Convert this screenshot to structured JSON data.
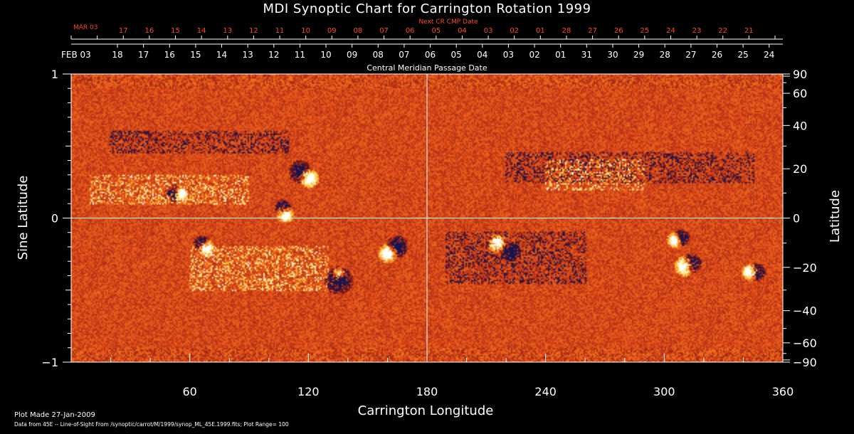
{
  "title": "MDI Synoptic Chart for Carrington Rotation 1999",
  "top_axis": {
    "next_label": "Next CR CMP Date",
    "next_start_label": "MAR 03",
    "next_ticks": [
      "17",
      "16",
      "15",
      "14",
      "13",
      "12",
      "11",
      "10",
      "09",
      "08",
      "07",
      "06",
      "05",
      "04",
      "03",
      "02",
      "01",
      "28",
      "27",
      "26",
      "25",
      "24",
      "23",
      "22",
      "21"
    ],
    "cmp_label": "Central Meridian Passage Date",
    "cmp_start_label": "FEB 03",
    "cmp_ticks": [
      "18",
      "17",
      "16",
      "15",
      "14",
      "13",
      "12",
      "11",
      "10",
      "09",
      "08",
      "07",
      "06",
      "05",
      "04",
      "03",
      "02",
      "01",
      "31",
      "30",
      "29",
      "28",
      "27",
      "26",
      "25",
      "24"
    ]
  },
  "footer": {
    "line1": "Plot Made 27-Jan-2009",
    "line2": "Data from 45E -- Line-of-Sight From /synoptic/carrot/M/1999/synop_ML_45E.1999.fits; Plot Range=  100"
  },
  "colors": {
    "background": "#000000",
    "accent_red": "#ff4a1c",
    "map_base": "#e8541c",
    "positive": "#fffbe0",
    "negative": "#10104a"
  },
  "chart_data": {
    "type": "heatmap",
    "title": "MDI Synoptic Chart for Carrington Rotation 1999",
    "xlabel": "Carrington Longitude",
    "ylabel": "Sine Latitude",
    "y2label": "Latitude",
    "xlim": [
      0,
      360
    ],
    "ylim": [
      -1,
      1
    ],
    "x_ticks": [
      60,
      120,
      180,
      240,
      300,
      360
    ],
    "x_tick_labels": [
      "60",
      "120",
      "180",
      "240",
      "300",
      "360"
    ],
    "y_ticks": [
      -1,
      0,
      1
    ],
    "y_tick_labels": [
      "−1",
      "0",
      "1"
    ],
    "lat_ticks": [
      90,
      60,
      40,
      20,
      0,
      -20,
      -40,
      -60,
      -90
    ],
    "lat_tick_labels": [
      "90",
      "60",
      "40",
      "20",
      "0",
      "−20",
      "−40",
      "−60",
      "−90"
    ],
    "plot_range": 100,
    "grid_lines": {
      "x": [
        180
      ],
      "y": [
        0
      ]
    },
    "active_regions": [
      {
        "lon": 120,
        "sinlat": 0.28,
        "pos": [
          0.5,
          0.45
        ],
        "neg": [
          -4,
          0.08,
          0.35
        ]
      },
      {
        "lon": 108,
        "sinlat": 0.03,
        "pos": [
          0.4,
          0.3
        ],
        "neg": [
          -1,
          0.08,
          0.2
        ]
      },
      {
        "lon": 160,
        "sinlat": -0.24,
        "pos": [
          0.5,
          0.5
        ],
        "neg": [
          4,
          0.08,
          0.35
        ]
      },
      {
        "lon": 135,
        "sinlat": -0.38,
        "pos": [
          0.2,
          0.2
        ],
        "neg": [
          0,
          -0.08,
          0.5
        ]
      },
      {
        "lon": 215,
        "sinlat": -0.17,
        "pos": [
          0.45,
          0.25
        ],
        "neg": [
          6,
          -0.1,
          0.3
        ]
      },
      {
        "lon": 310,
        "sinlat": -0.33,
        "pos": [
          0.55,
          0.45
        ],
        "neg": [
          3,
          0.03,
          0.3
        ]
      },
      {
        "lon": 343,
        "sinlat": -0.37,
        "pos": [
          0.4,
          0.35
        ],
        "neg": [
          3,
          0,
          0.25
        ]
      },
      {
        "lon": 305,
        "sinlat": -0.15,
        "pos": [
          0.35,
          0.28
        ],
        "neg": [
          3,
          0.03,
          0.22
        ]
      },
      {
        "lon": 68,
        "sinlat": -0.2,
        "pos": [
          0.35,
          0.28
        ],
        "neg": [
          -2,
          0.05,
          0.2
        ]
      },
      {
        "lon": 55,
        "sinlat": 0.17,
        "pos": [
          0.3,
          0.3
        ],
        "neg": [
          -3,
          0,
          0.25
        ]
      }
    ],
    "diffuse_bands": [
      {
        "lon": [
          20,
          110
        ],
        "sinlat": [
          0.45,
          0.6
        ],
        "sign": -1
      },
      {
        "lon": [
          220,
          345
        ],
        "sinlat": [
          0.25,
          0.45
        ],
        "sign": -1
      },
      {
        "lon": [
          10,
          90
        ],
        "sinlat": [
          0.1,
          0.3
        ],
        "sign": 1
      },
      {
        "lon": [
          60,
          130
        ],
        "sinlat": [
          -0.5,
          -0.2
        ],
        "sign": 1
      },
      {
        "lon": [
          190,
          260
        ],
        "sinlat": [
          -0.45,
          -0.1
        ],
        "sign": -1
      },
      {
        "lon": [
          240,
          290
        ],
        "sinlat": [
          0.2,
          0.4
        ],
        "sign": 1
      }
    ]
  }
}
